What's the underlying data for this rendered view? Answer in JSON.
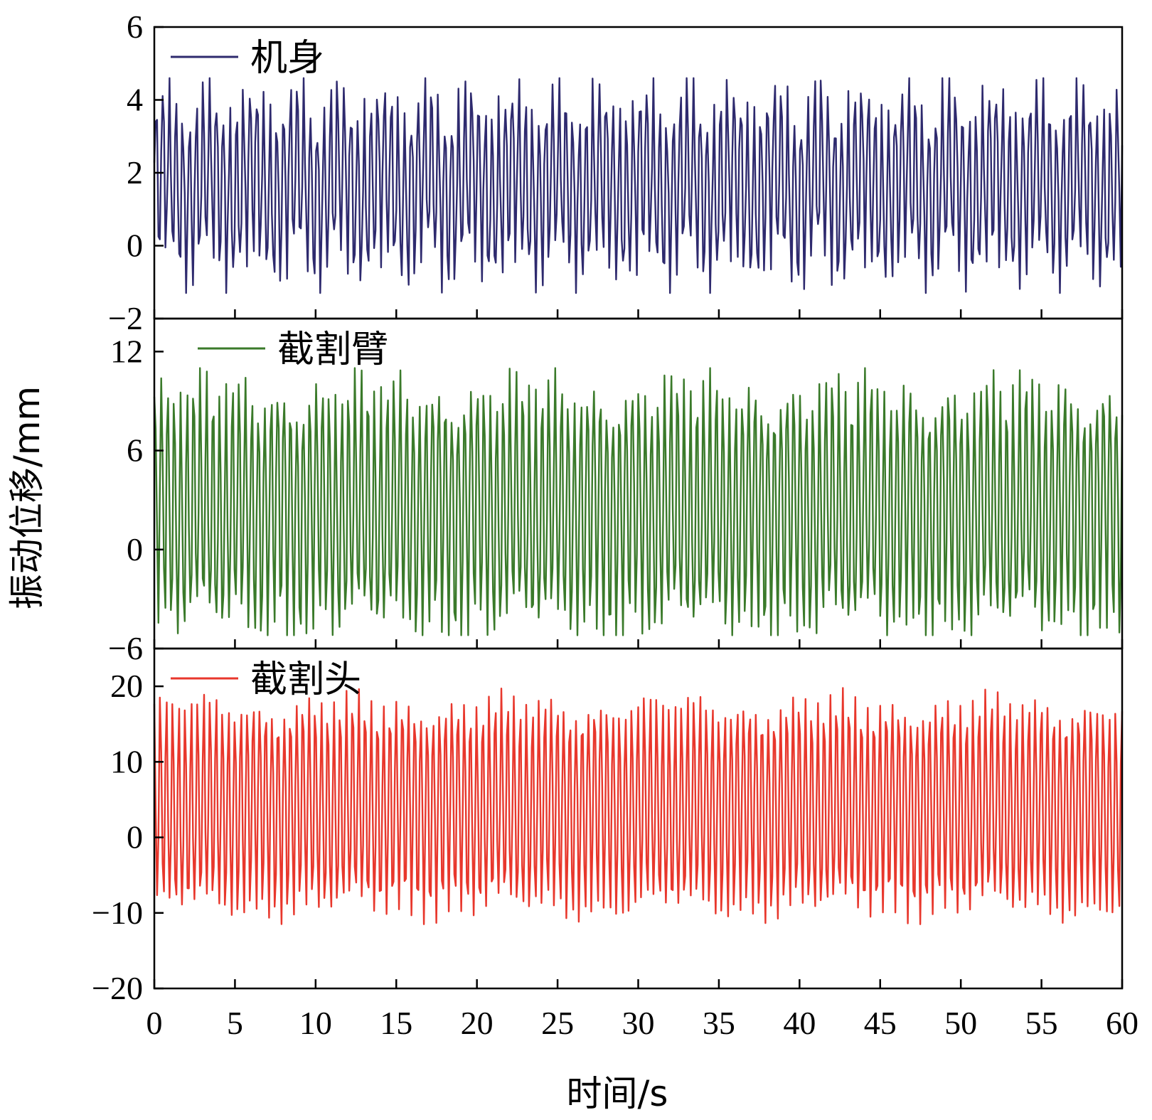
{
  "chart_data": {
    "type": "line",
    "layout": "stacked-panels",
    "xlabel": "时间/s",
    "ylabel": "振动位移/mm",
    "xlim": [
      0,
      60
    ],
    "x_ticks": [
      0,
      5,
      10,
      15,
      20,
      25,
      30,
      35,
      40,
      45,
      50,
      55,
      60
    ],
    "grid": false,
    "legend_position": "top-left",
    "panels": [
      {
        "series": [
          {
            "name": "机身",
            "color": "#2e2a6e"
          }
        ],
        "ylim": [
          -2,
          6
        ],
        "y_ticks": [
          -2,
          0,
          2,
          4,
          6
        ],
        "signal": {
          "base": 1.7,
          "amp1": 2.2,
          "freq1": 2.4,
          "amp2": 0.6,
          "freq2": 5.3,
          "amp3": 0.5,
          "freq3": 0.37,
          "min": -1.3,
          "max": 4.6
        }
      },
      {
        "series": [
          {
            "name": "截割臂",
            "color": "#3a7a2a"
          }
        ],
        "ylim": [
          -6,
          14
        ],
        "y_ticks": [
          -6,
          0,
          6,
          12
        ],
        "signal": {
          "base": 2.5,
          "amp1": 7.0,
          "freq1": 2.5,
          "amp2": 1.2,
          "freq2": 4.9,
          "amp3": 0.8,
          "freq3": 0.41,
          "min": -5.2,
          "max": 11.0
        }
      },
      {
        "series": [
          {
            "name": "截割头",
            "color": "#e8372c"
          }
        ],
        "ylim": [
          -20,
          25
        ],
        "y_ticks": [
          -20,
          -10,
          0,
          10,
          20
        ],
        "signal": {
          "base": 4.0,
          "amp1": 13.5,
          "freq1": 2.6,
          "amp2": 1.5,
          "freq2": 5.1,
          "amp3": 0.9,
          "freq3": 0.33,
          "min": -11.5,
          "max": 22.0
        }
      }
    ]
  }
}
